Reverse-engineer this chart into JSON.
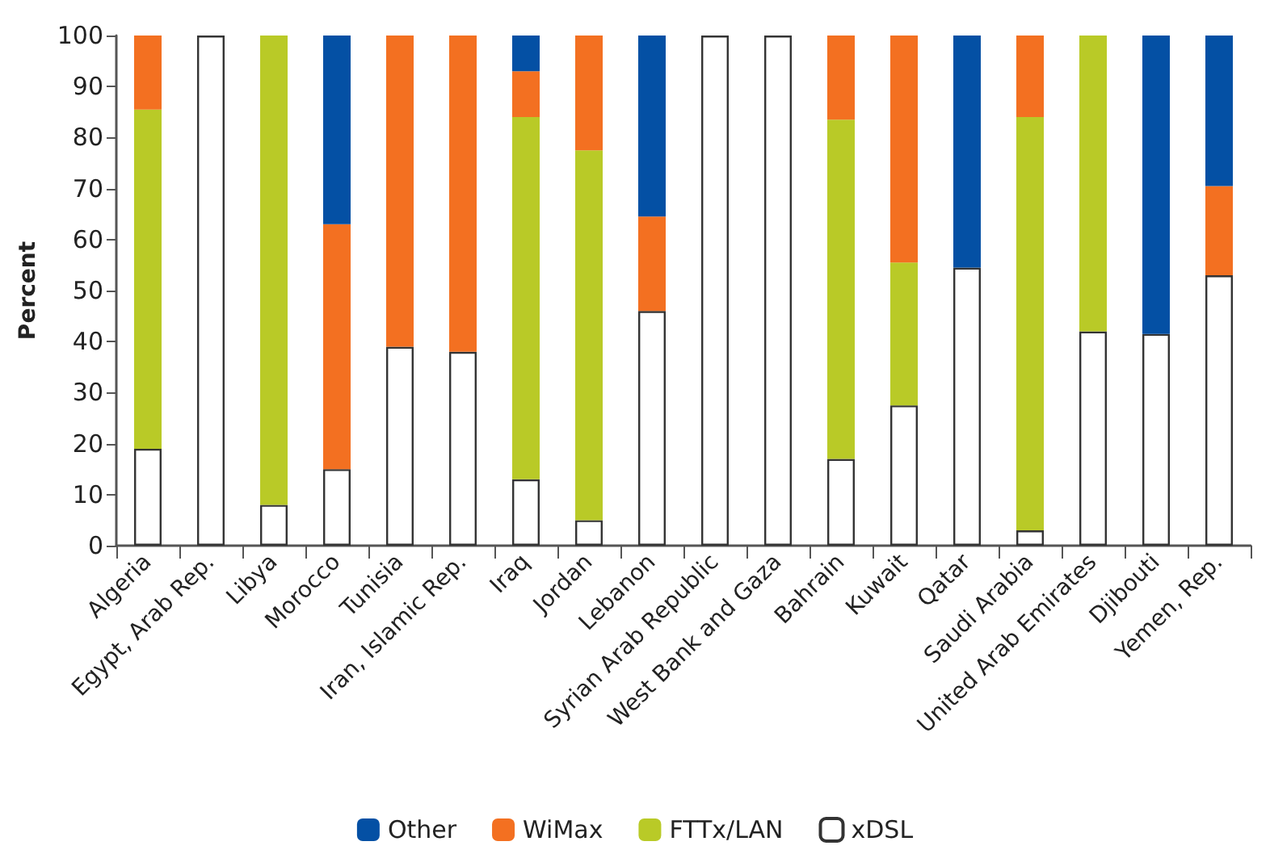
{
  "chart_data": {
    "type": "bar",
    "stacked": true,
    "ylabel": "Percent",
    "categories": [
      "Algeria",
      "Egypt, Arab Rep.",
      "Libya",
      "Morocco",
      "Tunisia",
      "Iran, Islamic Rep.",
      "Iraq",
      "Jordan",
      "Lebanon",
      "Syrian Arab Republic",
      "West Bank and Gaza",
      "Bahrain",
      "Kuwait",
      "Qatar",
      "Saudi Arabia",
      "United Arab Emirates",
      "Djibouti",
      "Yemen, Rep."
    ],
    "series": [
      {
        "name": "xDSL",
        "color": "#ffffff",
        "values": [
          19,
          100,
          8,
          15,
          39,
          38,
          13,
          5,
          46,
          100,
          100,
          17,
          27.5,
          54.5,
          3,
          42,
          41.5,
          53
        ]
      },
      {
        "name": "FTTx/LAN",
        "color": "#b9ca27",
        "values": [
          66.5,
          0,
          92,
          0,
          0,
          0,
          71,
          72.5,
          0,
          0,
          0,
          66.5,
          28,
          0,
          81,
          58,
          0,
          0
        ]
      },
      {
        "name": "WiMax",
        "color": "#f37021",
        "values": [
          14.5,
          0,
          0,
          48,
          61,
          62,
          9,
          22.5,
          18.5,
          0,
          0,
          16.5,
          44.5,
          0,
          16,
          0,
          0,
          17.5
        ]
      },
      {
        "name": "Other",
        "color": "#0450a4",
        "values": [
          0,
          0,
          0,
          37,
          0,
          0,
          7,
          0,
          35.5,
          0,
          0,
          0,
          0,
          45.5,
          0,
          0,
          58.5,
          29.5
        ]
      }
    ],
    "ylim": [
      0,
      100
    ],
    "yticks": [
      0,
      10,
      20,
      30,
      40,
      50,
      60,
      70,
      80,
      90,
      100
    ],
    "grid": false,
    "legend": "bottom"
  }
}
